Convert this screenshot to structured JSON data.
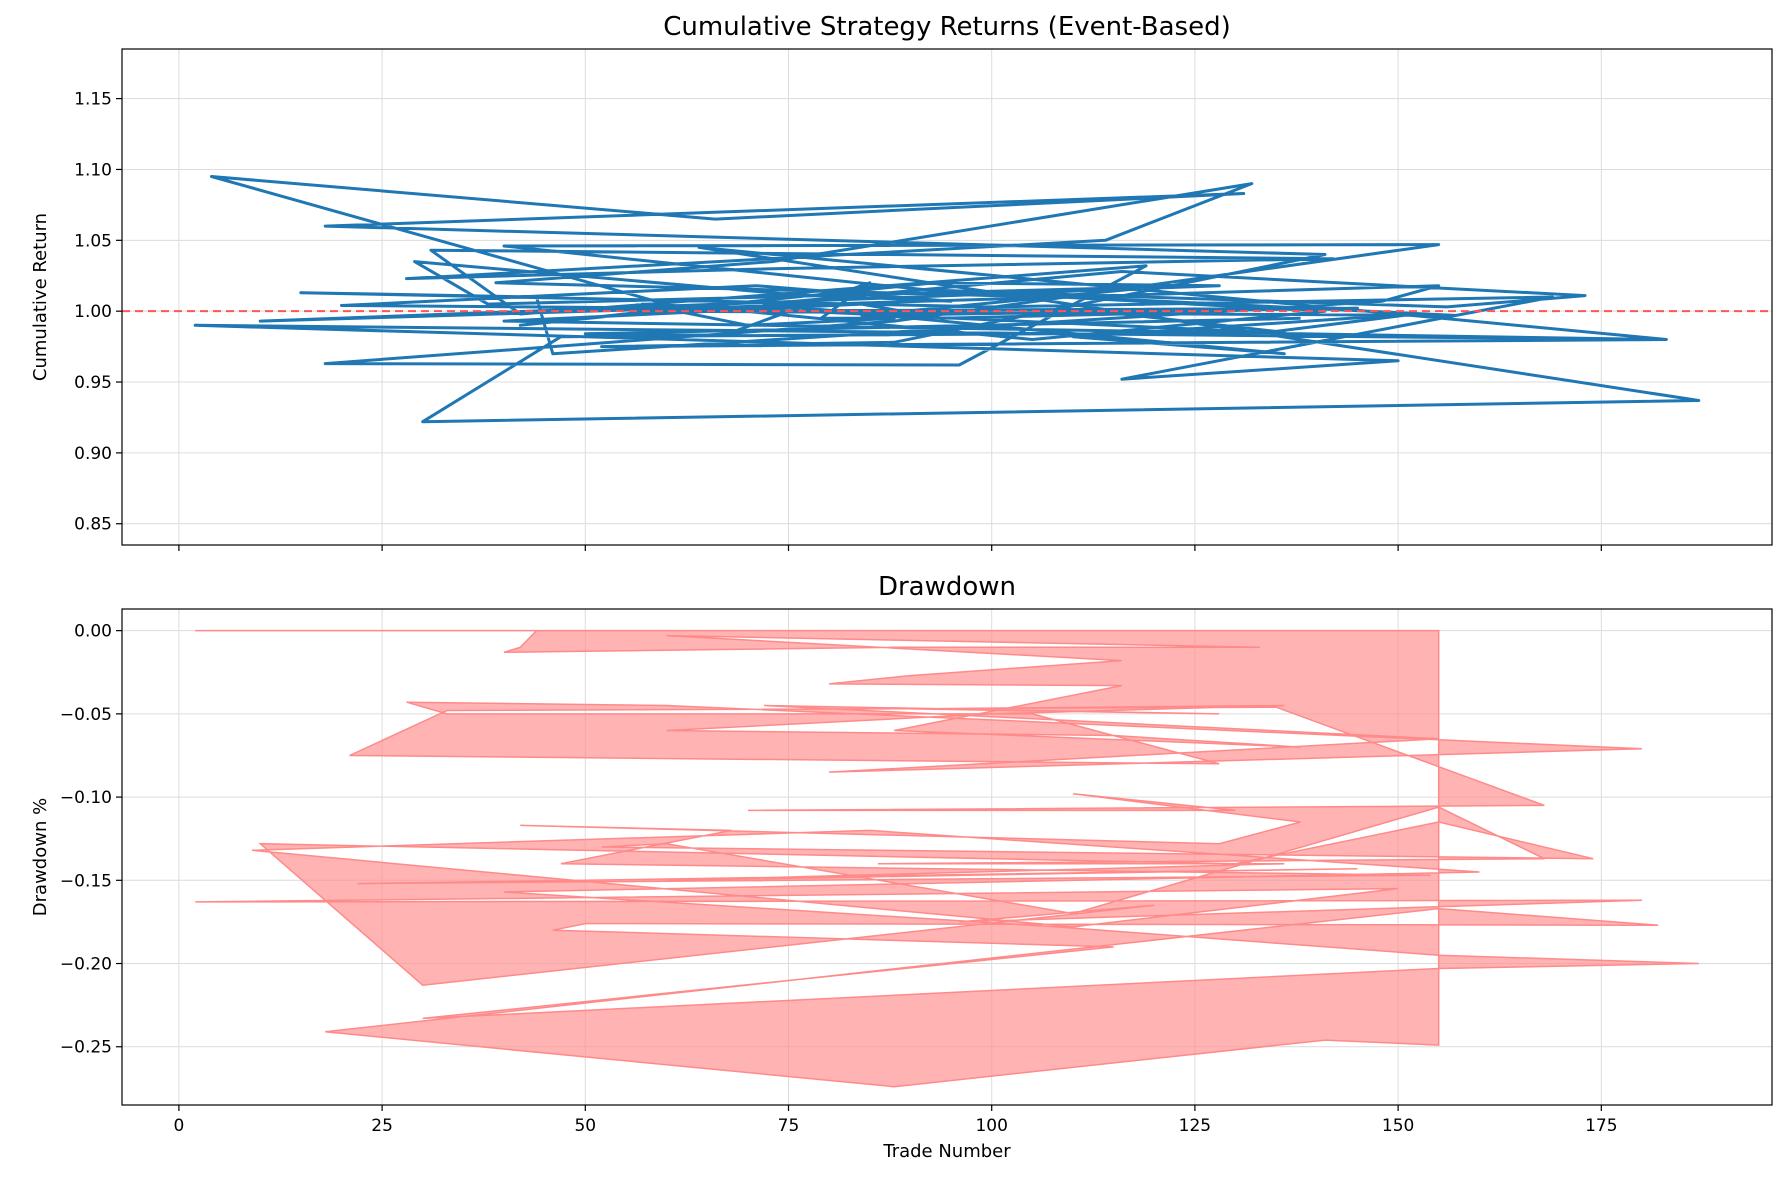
{
  "chart_data": [
    {
      "type": "line",
      "title": "Cumulative Strategy Returns (Event-Based)",
      "xlabel": "",
      "ylabel": "Cumulative Return",
      "xlim": [
        -7,
        196
      ],
      "ylim": [
        0.835,
        1.185
      ],
      "xticks": [
        0,
        25,
        50,
        75,
        100,
        125,
        150,
        175
      ],
      "xtick_labels": [
        "",
        "",
        "",
        "",
        "",
        "",
        "",
        ""
      ],
      "yticks": [
        0.85,
        0.9,
        0.95,
        1.0,
        1.05,
        1.1,
        1.15
      ],
      "ytick_labels": [
        "0.85",
        "0.90",
        "0.95",
        "1.00",
        "1.05",
        "1.10",
        "1.15"
      ],
      "grid": true,
      "line_color": "#1f77b4",
      "reference_line": {
        "y": 1.0,
        "color": "#ff5555",
        "style": "dashed"
      },
      "series": [
        {
          "x": [
            138,
            50,
            67,
            79,
            85,
            79,
            88,
            70,
            57,
            134,
            152,
            110,
            136,
            72,
            116,
            173,
            156,
            92,
            141,
            105,
            66,
            20,
            71,
            95,
            75,
            29,
            38,
            120,
            84,
            145,
            63,
            4,
            66,
            131,
            18,
            141,
            88,
            52,
            183,
            126,
            64,
            187,
            30,
            47,
            136,
            116,
            94,
            84,
            40,
            182,
            2,
            150,
            116,
            169,
            100,
            15,
            44,
            46,
            57,
            148,
            155,
            10,
            128,
            93,
            42,
            58,
            157,
            92,
            40,
            155,
            88,
            18,
            96,
            119,
            42,
            31,
            142,
            73,
            28,
            114,
            132,
            73,
            39,
            107
          ],
          "y": [
            0.995,
            0.984,
            0.983,
            1.008,
            1.02,
            0.995,
            0.995,
            0.99,
            1.005,
            0.985,
            0.998,
            0.982,
            0.97,
            1.005,
            1.028,
            1.011,
            1.003,
            1.015,
            1.0,
            0.98,
            1.002,
            1.004,
            1.018,
            1.007,
            1.012,
            1.035,
            1.005,
            1.017,
            0.997,
            1.002,
            1.0,
            1.095,
            1.065,
            1.083,
            1.06,
            1.04,
            0.978,
            0.975,
            0.98,
            1.011,
            1.045,
            0.937,
            0.922,
            0.982,
            0.985,
            0.998,
            0.995,
            1.005,
            0.993,
            0.98,
            0.99,
            0.965,
            0.952,
            1.01,
            1.003,
            1.013,
            1.01,
            0.97,
            0.974,
            1.007,
            1.018,
            0.993,
            1.018,
            1.02,
            0.99,
            1.0,
            0.997,
            1.015,
            1.046,
            1.047,
            0.993,
            0.963,
            0.962,
            1.032,
            0.998,
            1.043,
            1.037,
            1.03,
            1.023,
            1.05,
            1.09,
            1.035,
            1.02,
            1.01
          ]
        }
      ]
    },
    {
      "type": "area",
      "title": "Drawdown",
      "xlabel": "Trade Number",
      "ylabel": "Drawdown %",
      "xlim": [
        -7,
        196
      ],
      "ylim": [
        -0.285,
        0.013
      ],
      "xticks": [
        0,
        25,
        50,
        75,
        100,
        125,
        150,
        175
      ],
      "xtick_labels": [
        "0",
        "25",
        "50",
        "75",
        "100",
        "125",
        "150",
        "175"
      ],
      "yticks": [
        0.0,
        -0.05,
        -0.1,
        -0.15,
        -0.2,
        -0.25
      ],
      "ytick_labels": [
        "0.00",
        "−0.05",
        "−0.10",
        "−0.15",
        "−0.20",
        "−0.25"
      ],
      "grid": true,
      "fill_color": "#ff8a8a",
      "fill_opacity": 0.65,
      "series": [
        {
          "x": [
            2,
            44,
            42,
            40,
            88,
            133,
            60,
            116,
            90,
            80,
            116,
            88,
            138,
            115,
            60,
            100,
            136,
            90,
            128,
            72,
            155,
            80,
            180,
            60,
            28,
            33,
            105,
            128,
            21,
            33,
            135,
            168,
            70,
            130,
            114,
            110,
            138,
            128,
            42,
            68,
            47,
            154,
            22,
            145,
            60,
            136,
            86,
            168,
            155,
            110,
            60,
            52,
            174,
            155,
            130,
            10,
            30,
            120,
            96,
            180,
            2,
            150,
            110,
            9,
            85,
            160,
            40,
            108,
            155,
            187,
            155,
            30,
            115,
            46,
            50,
            182,
            155,
            18,
            88,
            141,
            155
          ],
          "y": [
            0.0,
            0.0,
            -0.01,
            -0.013,
            -0.01,
            -0.01,
            -0.003,
            -0.018,
            -0.027,
            -0.032,
            -0.033,
            -0.06,
            -0.07,
            -0.063,
            -0.06,
            -0.05,
            -0.045,
            -0.047,
            -0.05,
            -0.045,
            -0.065,
            -0.085,
            -0.071,
            -0.045,
            -0.043,
            -0.05,
            -0.05,
            -0.08,
            -0.075,
            -0.048,
            -0.046,
            -0.105,
            -0.108,
            -0.108,
            -0.1,
            -0.098,
            -0.115,
            -0.128,
            -0.117,
            -0.12,
            -0.14,
            -0.147,
            -0.152,
            -0.143,
            -0.15,
            -0.14,
            -0.14,
            -0.137,
            -0.106,
            -0.17,
            -0.128,
            -0.13,
            -0.137,
            -0.115,
            -0.14,
            -0.128,
            -0.213,
            -0.165,
            -0.175,
            -0.162,
            -0.163,
            -0.155,
            -0.178,
            -0.132,
            -0.12,
            -0.145,
            -0.157,
            -0.178,
            -0.195,
            -0.2,
            -0.203,
            -0.233,
            -0.19,
            -0.18,
            -0.176,
            -0.177,
            -0.167,
            -0.241,
            -0.274,
            -0.246,
            -0.249
          ]
        }
      ]
    }
  ]
}
